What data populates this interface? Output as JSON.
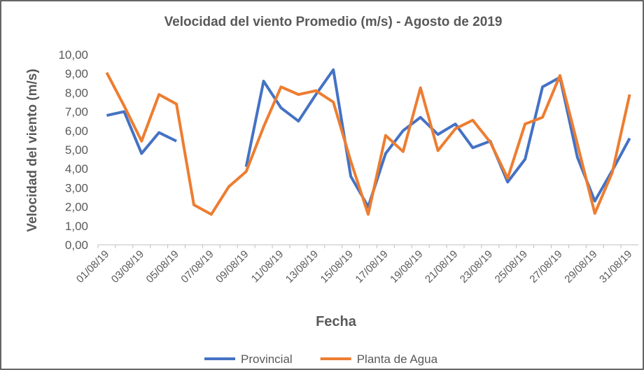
{
  "chart_data": {
    "type": "line",
    "title": "Velocidad del viento Promedio (m/s) - Agosto de 2019",
    "x_label": "Fecha",
    "y_label": "Velocidad del viento (m/s)",
    "categories": [
      "01/08/19",
      null,
      "03/08/19",
      null,
      "05/08/19",
      null,
      "07/08/19",
      null,
      "09/08/19",
      null,
      "11/08/19",
      null,
      "13/08/19",
      null,
      "15/08/19",
      null,
      "17/08/19",
      null,
      "19/08/19",
      null,
      "21/08/19",
      null,
      "23/08/19",
      null,
      "25/08/19",
      null,
      "27/08/19",
      null,
      "29/08/19",
      null,
      "31/08/19"
    ],
    "series": [
      {
        "name": "Provincial",
        "color": "#4472c4",
        "values": [
          6.8,
          7.0,
          4.8,
          5.9,
          5.45,
          null,
          null,
          null,
          4.1,
          8.6,
          7.2,
          6.5,
          7.9,
          9.2,
          3.6,
          2.0,
          4.8,
          6.0,
          6.7,
          5.8,
          6.35,
          5.1,
          5.45,
          3.3,
          4.5,
          8.3,
          8.8,
          4.6,
          2.3,
          3.9,
          5.6
        ]
      },
      {
        "name": "Planta de Agua",
        "color": "#ed7d31",
        "values": [
          9.05,
          7.3,
          5.45,
          7.9,
          7.4,
          2.1,
          1.6,
          3.05,
          3.85,
          6.2,
          8.3,
          7.9,
          8.1,
          7.5,
          4.4,
          1.6,
          5.75,
          4.9,
          8.25,
          4.95,
          6.1,
          6.55,
          5.4,
          3.5,
          6.35,
          6.7,
          8.9,
          5.3,
          1.65,
          3.8,
          7.9
        ]
      }
    ],
    "ylim": [
      0,
      10
    ],
    "yticks": [
      {
        "value": 0,
        "label": "0,00"
      },
      {
        "value": 1,
        "label": "1,00"
      },
      {
        "value": 2,
        "label": "2,00"
      },
      {
        "value": 3,
        "label": "3,00"
      },
      {
        "value": 4,
        "label": "4,00"
      },
      {
        "value": 5,
        "label": "5,00"
      },
      {
        "value": 6,
        "label": "6,00"
      },
      {
        "value": 7,
        "label": "7,00"
      },
      {
        "value": 8,
        "label": "8,00"
      },
      {
        "value": 9,
        "label": "9,00"
      },
      {
        "value": 10,
        "label": "10,00"
      }
    ],
    "grid": false
  }
}
